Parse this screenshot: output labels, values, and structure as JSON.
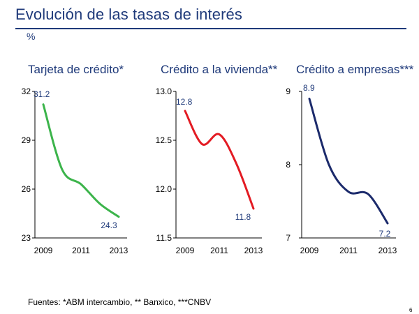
{
  "slide": {
    "title": "Evolución de las tasas de interés",
    "unit": "%",
    "footnote": "Fuentes: *ABM intercambio, ** Banxico, ***CNBV",
    "page_number": "6"
  },
  "chart_data": [
    {
      "type": "line",
      "title": "Tarjeta de crédito*",
      "color": "#3cb44b",
      "x": [
        2009,
        2010,
        2011,
        2012,
        2013
      ],
      "xticks": [
        "2009",
        "2011",
        "2013"
      ],
      "y": [
        31.2,
        27.2,
        26.3,
        25.1,
        24.3
      ],
      "ylim": [
        23,
        32
      ],
      "yticks": [
        "32",
        "29",
        "26",
        "23"
      ],
      "labels": {
        "start": "31.2",
        "end": "24.3"
      }
    },
    {
      "type": "line",
      "title": "Crédito a la vivienda**",
      "color": "#e31b23",
      "x": [
        2009,
        2010,
        2011,
        2012,
        2013
      ],
      "xticks": [
        "2009",
        "2011",
        "2013"
      ],
      "y": [
        12.8,
        12.46,
        12.56,
        12.26,
        11.8
      ],
      "ylim": [
        11.5,
        13.0
      ],
      "yticks": [
        "13.0",
        "12.5",
        "12.0",
        "11.5"
      ],
      "labels": {
        "start": "12.8",
        "end": "11.8"
      }
    },
    {
      "type": "line",
      "title": "Crédito a empresas***",
      "color": "#1b2a6b",
      "x": [
        2009,
        2010,
        2011,
        2012,
        2013
      ],
      "xticks": [
        "2009",
        "2011",
        "2013"
      ],
      "y": [
        8.9,
        8.0,
        7.63,
        7.6,
        7.2
      ],
      "ylim": [
        7,
        9
      ],
      "yticks": [
        "9",
        "8",
        "7"
      ],
      "labels": {
        "start": "8.9",
        "end": "7.2"
      }
    }
  ]
}
